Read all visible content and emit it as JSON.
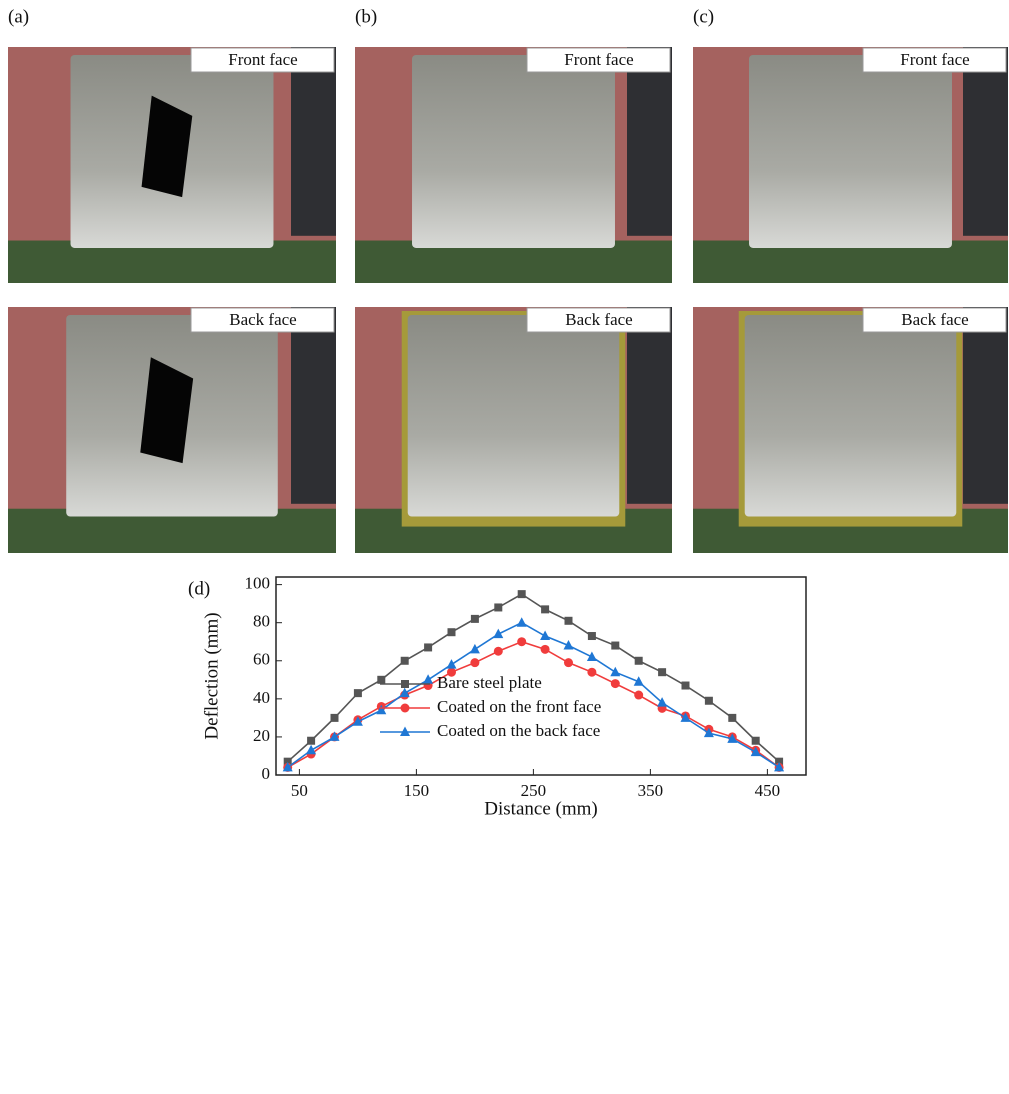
{
  "panels": [
    {
      "label": "(a)",
      "front": "Front face",
      "back": "Back face"
    },
    {
      "label": "(b)",
      "front": "Front face",
      "back": "Back face"
    },
    {
      "label": "(c)",
      "front": "Front face",
      "back": "Back face"
    }
  ],
  "chart_data": {
    "type": "line",
    "panel_label": "(d)",
    "x_label": "Distance (mm)",
    "y_label": "Deflection (mm)",
    "xlim": [
      30,
      483
    ],
    "ylim": [
      0,
      104
    ],
    "xticks": [
      50,
      150,
      250,
      350,
      450
    ],
    "yticks": [
      0,
      20,
      40,
      60,
      80,
      100
    ],
    "x": [
      40,
      60,
      80,
      100,
      120,
      140,
      160,
      180,
      200,
      220,
      240,
      260,
      280,
      300,
      320,
      340,
      360,
      380,
      400,
      420,
      440,
      460
    ],
    "series": [
      {
        "name": "Bare steel plate",
        "color": "#555555",
        "marker": "square",
        "values": [
          7,
          18,
          30,
          43,
          50,
          60,
          67,
          75,
          82,
          88,
          95,
          87,
          81,
          73,
          68,
          60,
          54,
          47,
          39,
          30,
          18,
          7
        ]
      },
      {
        "name": "Coated on the front face",
        "color": "#f03c3c",
        "marker": "circle",
        "values": [
          4,
          11,
          20,
          29,
          36,
          42,
          47,
          54,
          59,
          65,
          70,
          66,
          59,
          54,
          48,
          42,
          35,
          31,
          24,
          20,
          13,
          4
        ]
      },
      {
        "name": "Coated on the back face",
        "color": "#1f77d4",
        "marker": "triangle",
        "values": [
          4,
          13,
          20,
          28,
          34,
          43,
          50,
          58,
          66,
          74,
          80,
          73,
          68,
          62,
          54,
          49,
          38,
          30,
          22,
          19,
          12,
          4
        ]
      }
    ],
    "legend": "lower-left"
  }
}
